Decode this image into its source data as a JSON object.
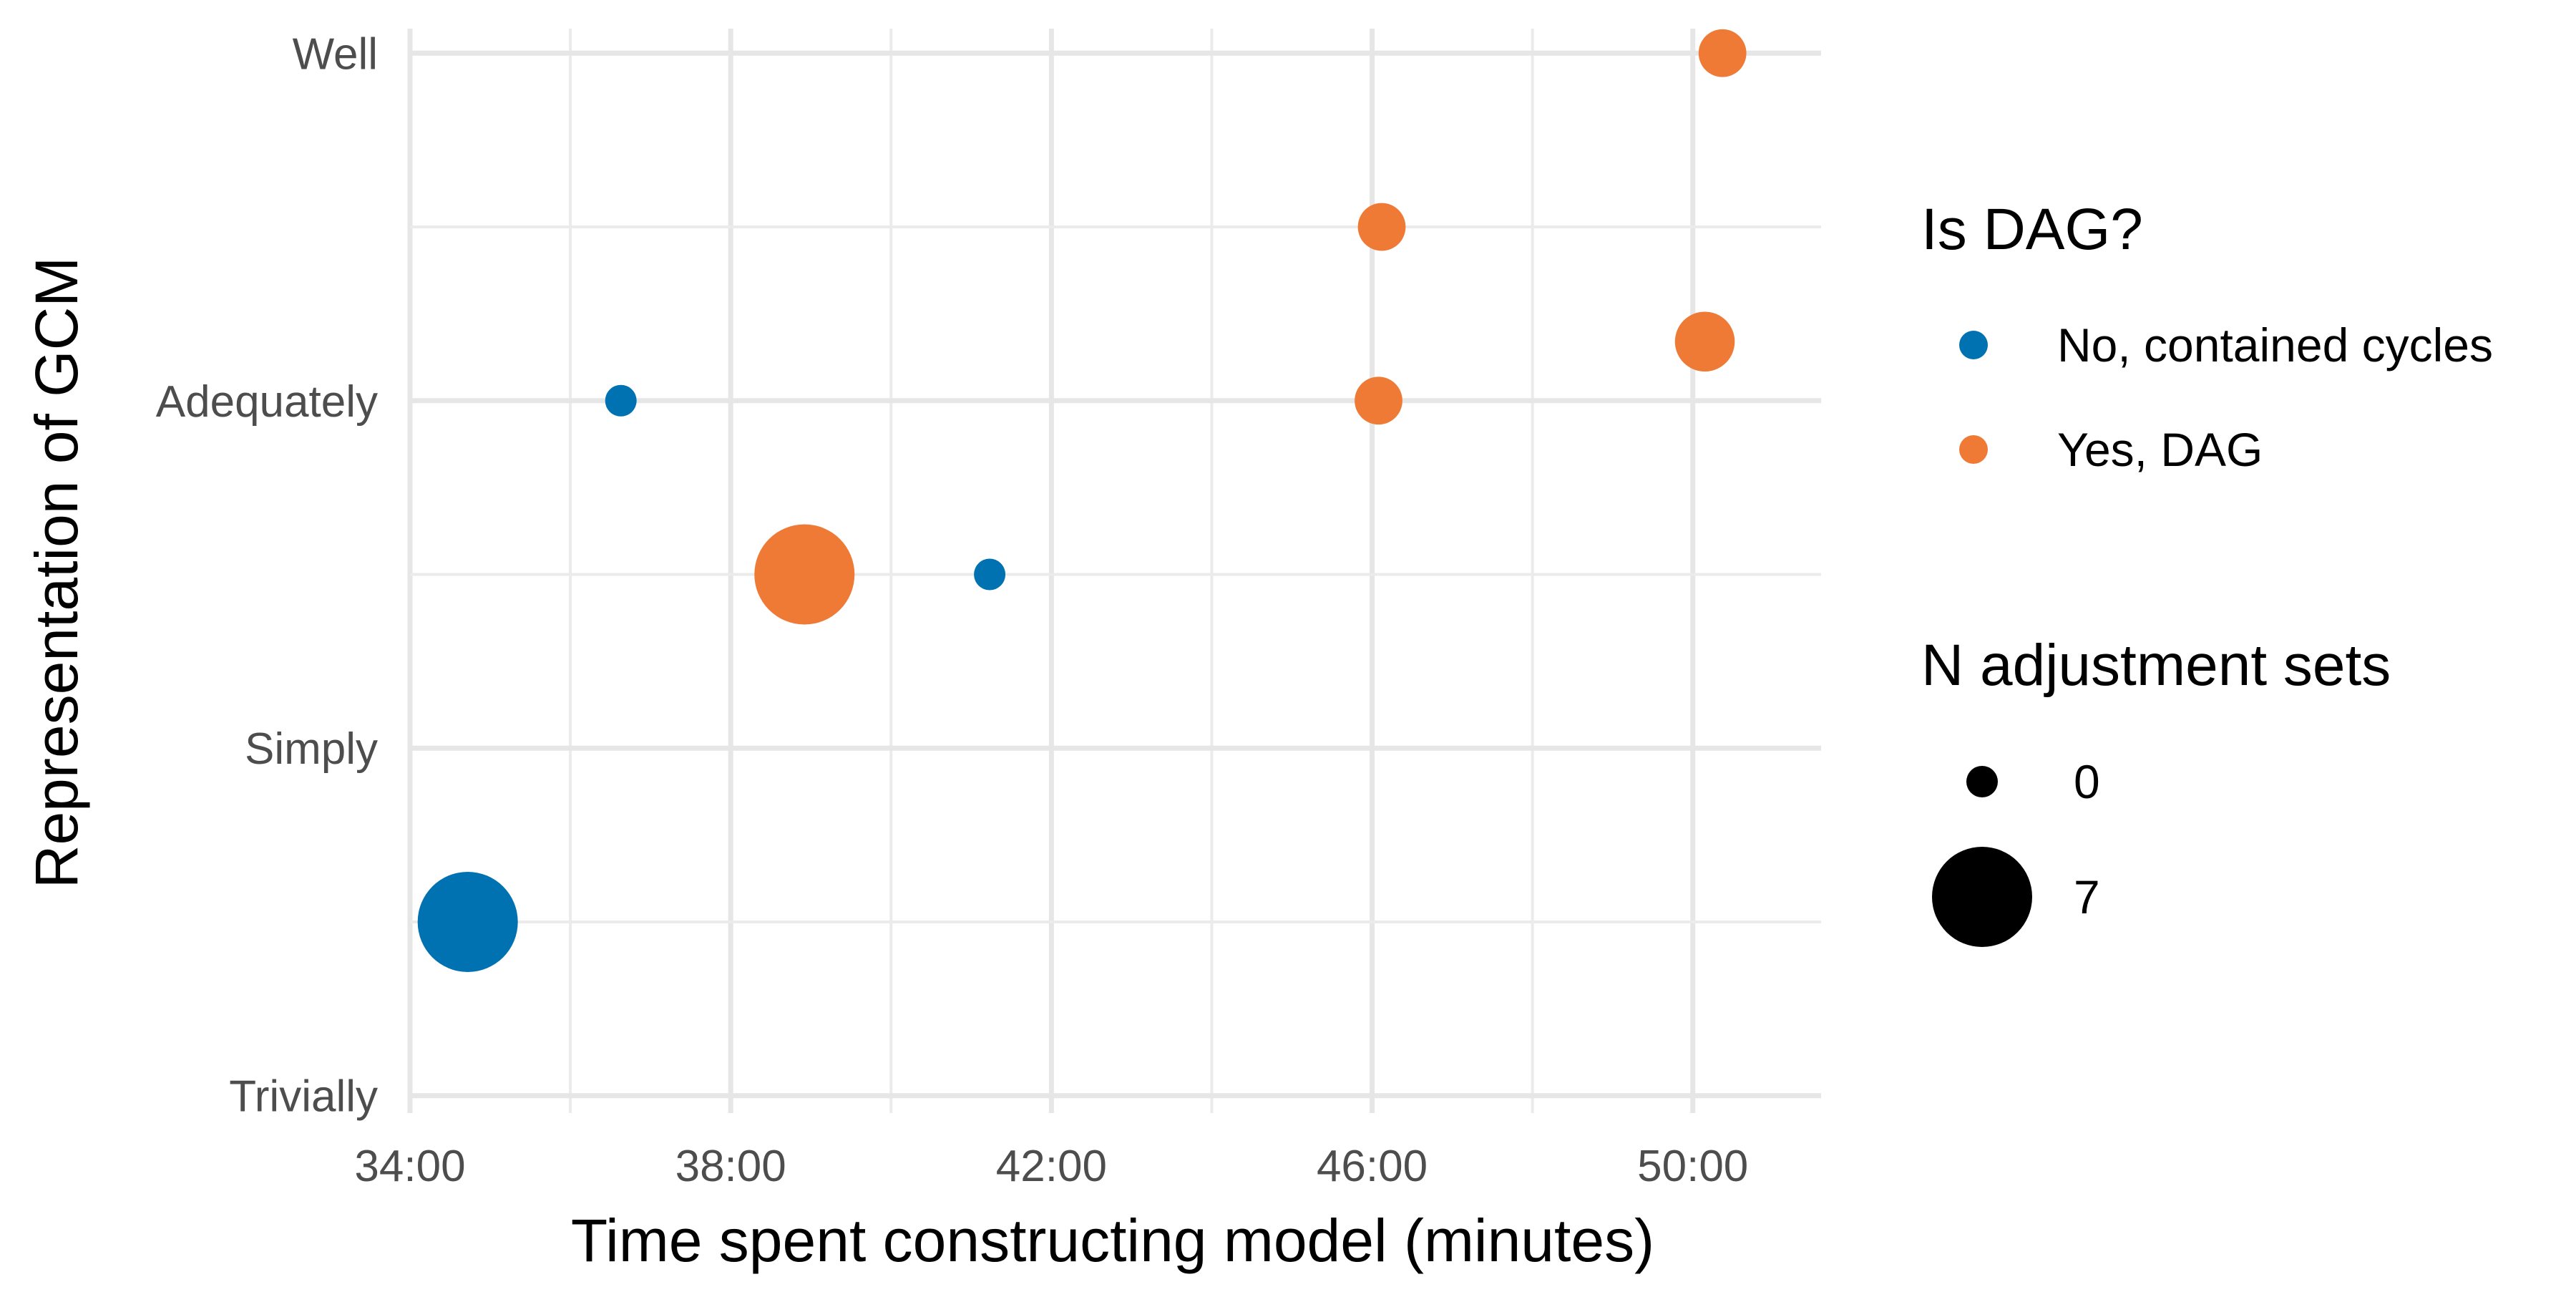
{
  "chart_data": {
    "type": "scatter",
    "title": "",
    "xlabel": "Time spent constructing model (minutes)",
    "ylabel": "Representation of GCM",
    "x_unit": "minutes",
    "xlim": [
      34.0,
      51.6
    ],
    "ylim": [
      0.95,
      4.05
    ],
    "x_ticks": [
      {
        "value": 34,
        "label": "34:00"
      },
      {
        "value": 38,
        "label": "38:00"
      },
      {
        "value": 42,
        "label": "42:00"
      },
      {
        "value": 46,
        "label": "46:00"
      },
      {
        "value": 50,
        "label": "50:00"
      }
    ],
    "y_ticks": [
      {
        "value": 1,
        "label": "Trivially"
      },
      {
        "value": 2,
        "label": "Simply"
      },
      {
        "value": 3,
        "label": "Adequately"
      },
      {
        "value": 4,
        "label": "Well"
      }
    ],
    "grid": true,
    "legend_position": "right",
    "color_legend": {
      "title": "Is DAG?",
      "entries": [
        {
          "label": "No, contained cycles",
          "color": "#0072b2"
        },
        {
          "label": "Yes, DAG",
          "color": "#ef7a36"
        }
      ]
    },
    "size_legend": {
      "title": "N adjustment sets",
      "entries": [
        {
          "label": "0",
          "value": 0
        },
        {
          "label": "7",
          "value": 7
        }
      ]
    },
    "series": [
      {
        "name": "No, contained cycles",
        "color": "#0072b2",
        "points": [
          {
            "x": 34.72,
            "y": 1.5,
            "n_adjustment_sets": 7
          },
          {
            "x": 36.63,
            "y": 3.0,
            "n_adjustment_sets": 0
          },
          {
            "x": 41.23,
            "y": 2.5,
            "n_adjustment_sets": 0
          }
        ]
      },
      {
        "name": "Yes, DAG",
        "color": "#ef7a36",
        "points": [
          {
            "x": 38.92,
            "y": 2.5,
            "n_adjustment_sets": 7
          },
          {
            "x": 46.08,
            "y": 3.0,
            "n_adjustment_sets": 1
          },
          {
            "x": 46.12,
            "y": 3.5,
            "n_adjustment_sets": 1
          },
          {
            "x": 50.15,
            "y": 3.17,
            "n_adjustment_sets": 2
          },
          {
            "x": 50.37,
            "y": 4.0,
            "n_adjustment_sets": 1
          }
        ]
      }
    ]
  }
}
